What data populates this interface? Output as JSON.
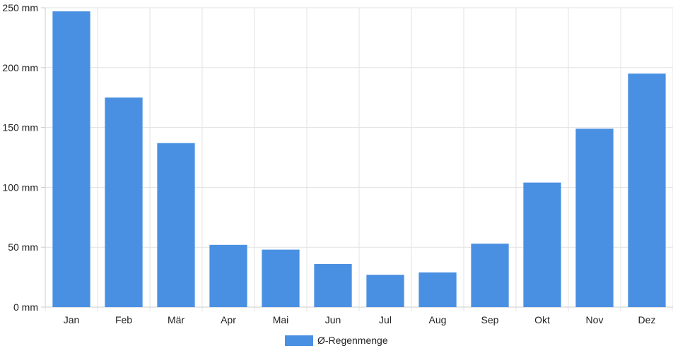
{
  "chart_data": {
    "type": "bar",
    "categories": [
      "Jan",
      "Feb",
      "Mär",
      "Apr",
      "Mai",
      "Jun",
      "Jul",
      "Aug",
      "Sep",
      "Okt",
      "Nov",
      "Dez"
    ],
    "series": [
      {
        "name": "Ø-Regenmenge",
        "values": [
          247,
          175,
          137,
          52,
          48,
          36,
          27,
          29,
          53,
          104,
          149,
          195
        ]
      }
    ],
    "y_ticks": [
      "0 mm",
      "50 mm",
      "100 mm",
      "150 mm",
      "200 mm",
      "250 mm"
    ],
    "ylim": [
      0,
      250
    ],
    "y_unit": "mm",
    "grid": true,
    "legend_position": "bottom-center",
    "colors": {
      "bar": "#4a90e2",
      "grid": "#e3e3e3",
      "axis": "#cccccc",
      "text": "#222222"
    }
  }
}
